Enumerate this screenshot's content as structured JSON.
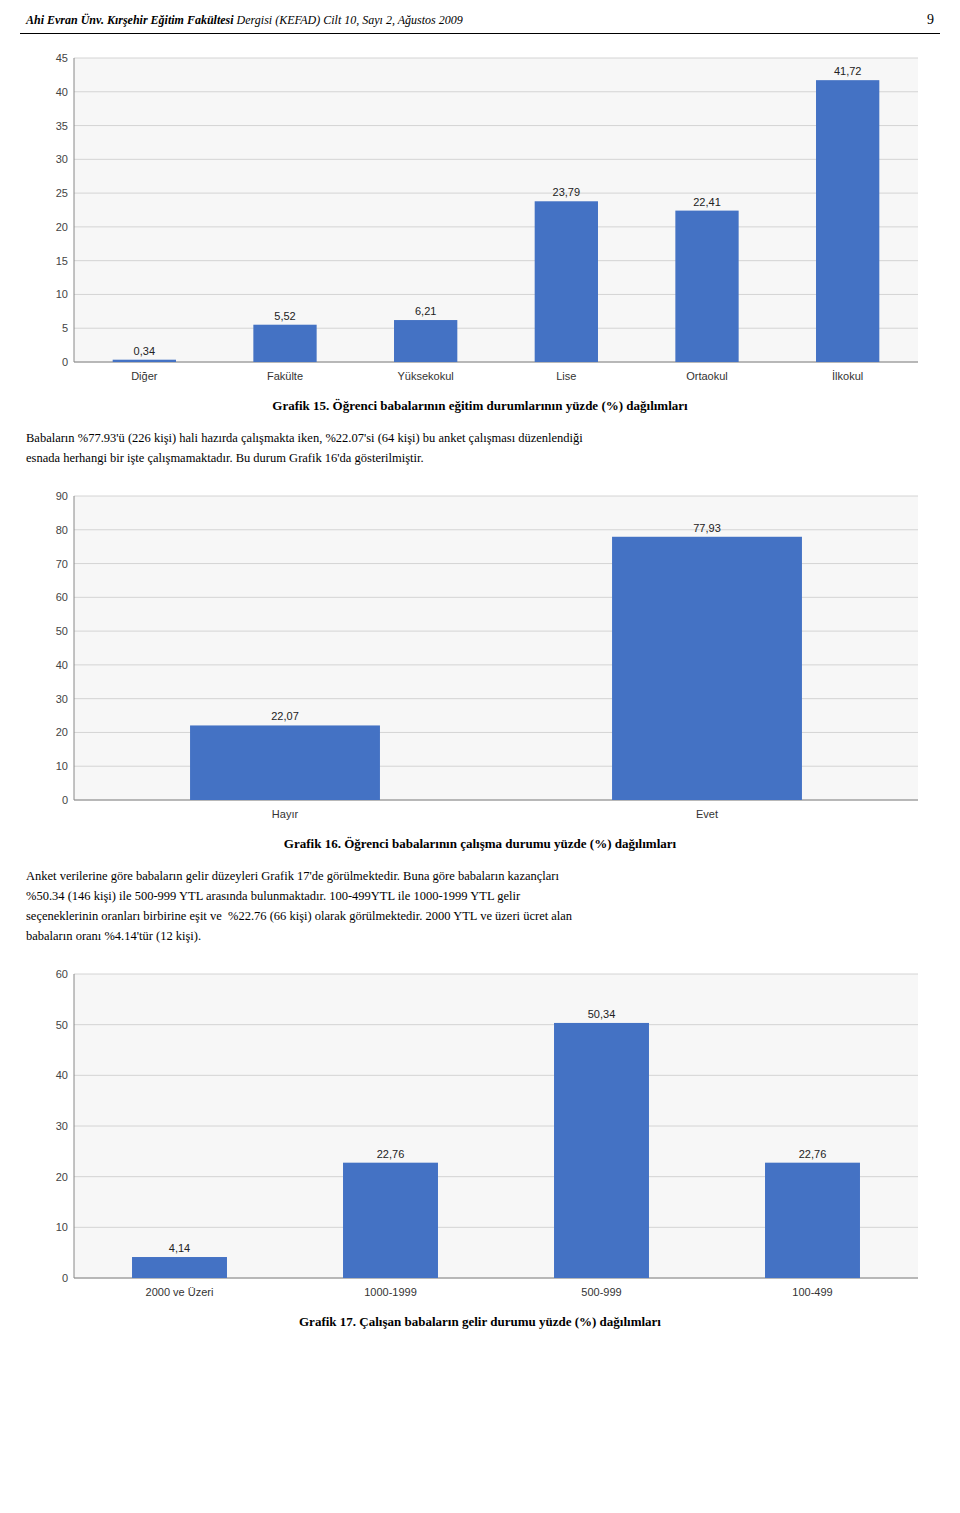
{
  "header": {
    "bold": "Ahi Evran Ünv. Kırşehir Eğitim Fakültesi",
    "normal": " Dergisi (KEFAD) Cilt 10, Sayı 2, Ağustos 2009"
  },
  "page_number": "9",
  "paragraphs": [
    [
      "Babaların %77.93'ü (226 kişi) hali hazırda çalışmakta iken, %22.07'si (64 kişi) bu anket çalışması düzenlendiği",
      "esnada herhangi bir işte çalışmamaktadır. Bu durum Grafik 16'da gösterilmiştir."
    ],
    [
      "Anket verilerine göre babaların gelir düzeyleri Grafik 17'de görülmektedir. Buna göre babaların kazançları",
      "%50.34 (146 kişi) ile 500-999 YTL arasında bulunmaktadır. 100-499YTL ile 1000-1999 YTL gelir",
      "seçeneklerinin oranları birbirine eşit ve  %22.76 (66 kişi) olarak görülmektedir. 2000 YTL ve üzeri ücret alan",
      "babaların oranı %4.14'tür (12 kişi)."
    ]
  ],
  "chart_data": [
    {
      "type": "bar",
      "title": "Grafik 15. Öğrenci babalarının eğitim durumlarının yüzde (%) dağılımları",
      "categories": [
        "Diğer",
        "Fakülte",
        "Yüksekokul",
        "Lise",
        "Ortaokul",
        "İlkokul"
      ],
      "values": [
        0.34,
        5.52,
        6.21,
        23.79,
        22.41,
        41.72
      ],
      "value_labels": [
        "0,34",
        "5,52",
        "6,21",
        "23,79",
        "22,41",
        "41,72"
      ],
      "data_labels": true,
      "color": "#4472C4",
      "grid": true,
      "ylim": [
        0,
        45
      ],
      "yticks": [
        0,
        5,
        10,
        15,
        20,
        25,
        30,
        35,
        40,
        45
      ]
    },
    {
      "type": "bar",
      "title": "Grafik 16. Öğrenci babalarının çalışma durumu yüzde (%) dağılımları",
      "categories": [
        "Hayır",
        "Evet"
      ],
      "values": [
        22.07,
        77.93
      ],
      "value_labels": [
        "22,07",
        "77,93"
      ],
      "data_labels": true,
      "color": "#4472C4",
      "grid": true,
      "ylim": [
        0,
        90
      ],
      "yticks": [
        0,
        10,
        20,
        30,
        40,
        50,
        60,
        70,
        80,
        90
      ]
    },
    {
      "type": "bar",
      "title": "Grafik 17. Çalışan babaların gelir durumu yüzde (%) dağılımları",
      "categories": [
        "2000 ve Üzeri",
        "1000-1999",
        "500-999",
        "100-499"
      ],
      "values": [
        4.14,
        22.76,
        50.34,
        22.76
      ],
      "value_labels": [
        "4,14",
        "22,76",
        "50,34",
        "22,76"
      ],
      "data_labels": true,
      "color": "#4472C4",
      "grid": true,
      "ylim": [
        0,
        60
      ],
      "yticks": [
        0,
        10,
        20,
        30,
        40,
        50,
        60
      ]
    }
  ]
}
